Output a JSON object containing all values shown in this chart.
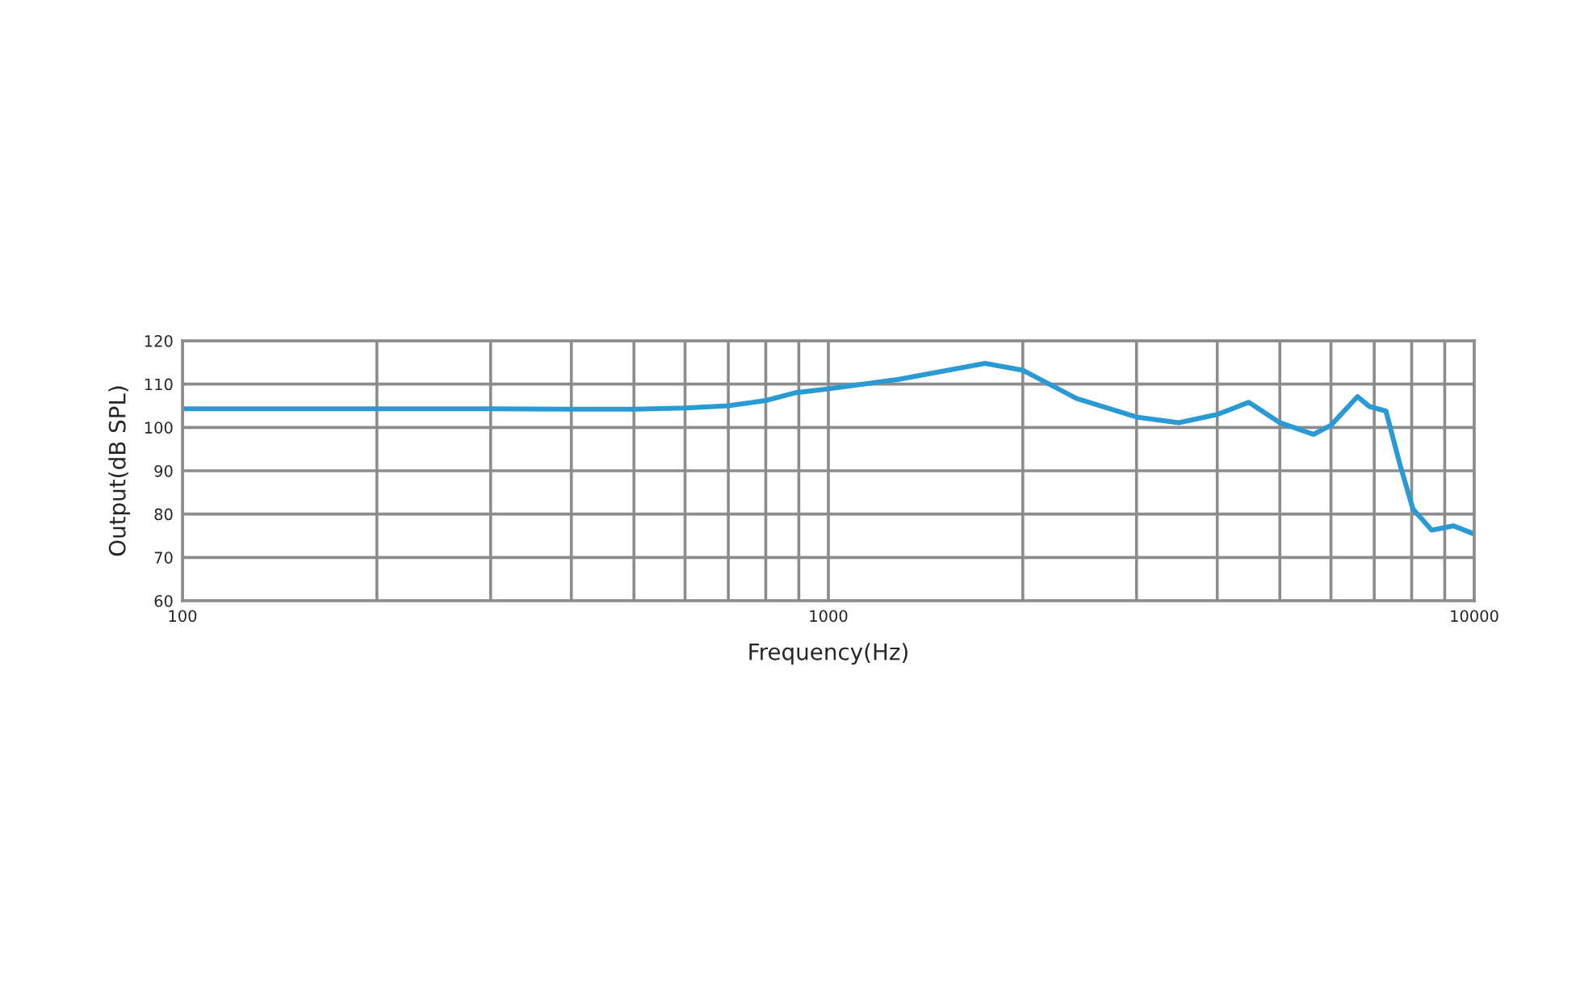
{
  "chart_data": {
    "type": "line",
    "xlabel": "Frequency(Hz)",
    "ylabel": "Output(dB SPL)",
    "log": "x",
    "grid": true,
    "marker": "none",
    "line_style": "solid",
    "xlim": [
      100,
      10000
    ],
    "ylim": [
      60,
      120
    ],
    "xticks": [
      100,
      {
        "value": 200,
        "label": null
      },
      {
        "value": 300,
        "label": null
      },
      {
        "value": 400,
        "label": null
      },
      {
        "value": 500,
        "label": null
      },
      {
        "value": 600,
        "label": null
      },
      {
        "value": 700,
        "label": null
      },
      {
        "value": 800,
        "label": null
      },
      {
        "value": 900,
        "label": null
      },
      1000,
      {
        "value": 2000,
        "label": null
      },
      {
        "value": 3000,
        "label": null
      },
      {
        "value": 4000,
        "label": null
      },
      {
        "value": 5000,
        "label": null
      },
      {
        "value": 6000,
        "label": null
      },
      {
        "value": 7000,
        "label": null
      },
      {
        "value": 8000,
        "label": null
      },
      {
        "value": 9000,
        "label": null
      },
      10000
    ],
    "yticks": [
      60,
      70,
      80,
      90,
      100,
      110,
      120
    ],
    "series": [
      {
        "color": "#2a9ad4",
        "x": [
          100,
          200,
          300,
          400,
          500,
          600,
          700,
          800,
          889,
          1000,
          1286,
          1748,
          2000,
          2421,
          3000,
          3487,
          4000,
          4477,
          5000,
          5634,
          6000,
          6594,
          6887,
          7298,
          7661,
          8035,
          8592,
          9280,
          10000
        ],
        "values": [
          104.3,
          104.3,
          104.3,
          104.2,
          104.2,
          104.5,
          105,
          106.2,
          108,
          108.9,
          111.1,
          114.8,
          113.2,
          106.7,
          102.4,
          101.1,
          103,
          105.8,
          101.1,
          98.4,
          100.5,
          107.1,
          104.8,
          103.8,
          91.8,
          81.2,
          76.3,
          77.3,
          75.4
        ]
      }
    ]
  }
}
